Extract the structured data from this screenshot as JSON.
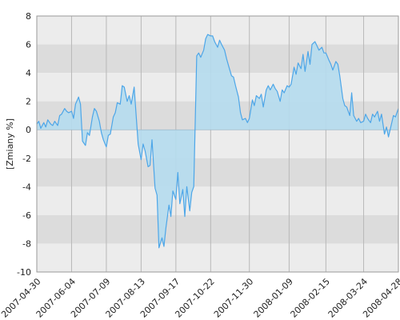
{
  "chart_data": {
    "type": "area",
    "title": "",
    "xlabel": "",
    "ylabel": "[Zmiany %]",
    "ylim": [
      -10,
      8
    ],
    "yticks": [
      8,
      6,
      4,
      2,
      0,
      -2,
      -4,
      -6,
      -8,
      -10
    ],
    "grid": true,
    "xtick_labels": [
      "2007-04-30",
      "2007-06-04",
      "2007-07-09",
      "2007-08-13",
      "2007-09-17",
      "2007-10-22",
      "2007-11-30",
      "2008-01-09",
      "2008-02-15",
      "2008-03-24",
      "2008-04-28"
    ],
    "x_start": "2007-04-30",
    "x_end": "2008-04-28",
    "series": [
      {
        "color": "#4da6e8",
        "fill": "#b5dbee",
        "points": [
          [
            "2007-04-30",
            0.4
          ],
          [
            "2007-05-02",
            0.6
          ],
          [
            "2007-05-04",
            0.1
          ],
          [
            "2007-05-07",
            0.5
          ],
          [
            "2007-05-09",
            0.2
          ],
          [
            "2007-05-11",
            0.7
          ],
          [
            "2007-05-14",
            0.4
          ],
          [
            "2007-05-16",
            0.3
          ],
          [
            "2007-05-18",
            0.6
          ],
          [
            "2007-05-21",
            0.3
          ],
          [
            "2007-05-23",
            1.0
          ],
          [
            "2007-05-25",
            1.1
          ],
          [
            "2007-05-28",
            1.5
          ],
          [
            "2007-05-30",
            1.3
          ],
          [
            "2007-06-01",
            1.2
          ],
          [
            "2007-06-04",
            1.3
          ],
          [
            "2007-06-06",
            0.8
          ],
          [
            "2007-06-08",
            1.8
          ],
          [
            "2007-06-11",
            2.3
          ],
          [
            "2007-06-13",
            1.8
          ],
          [
            "2007-06-15",
            -0.8
          ],
          [
            "2007-06-18",
            -1.1
          ],
          [
            "2007-06-20",
            -0.2
          ],
          [
            "2007-06-22",
            -0.4
          ],
          [
            "2007-06-25",
            0.9
          ],
          [
            "2007-06-27",
            1.5
          ],
          [
            "2007-06-29",
            1.3
          ],
          [
            "2007-07-02",
            0.6
          ],
          [
            "2007-07-04",
            -0.2
          ],
          [
            "2007-07-06",
            -0.7
          ],
          [
            "2007-07-09",
            -1.2
          ],
          [
            "2007-07-11",
            -0.4
          ],
          [
            "2007-07-13",
            -0.3
          ],
          [
            "2007-07-16",
            0.9
          ],
          [
            "2007-07-18",
            1.2
          ],
          [
            "2007-07-20",
            1.9
          ],
          [
            "2007-07-23",
            1.8
          ],
          [
            "2007-07-25",
            3.1
          ],
          [
            "2007-07-27",
            3.0
          ],
          [
            "2007-07-30",
            2.0
          ],
          [
            "2007-08-01",
            2.4
          ],
          [
            "2007-08-03",
            1.8
          ],
          [
            "2007-08-06",
            3.0
          ],
          [
            "2007-08-08",
            1.0
          ],
          [
            "2007-08-10",
            -1.0
          ],
          [
            "2007-08-13",
            -2.1
          ],
          [
            "2007-08-15",
            -1.0
          ],
          [
            "2007-08-17",
            -1.5
          ],
          [
            "2007-08-20",
            -2.6
          ],
          [
            "2007-08-22",
            -2.5
          ],
          [
            "2007-08-24",
            -0.7
          ],
          [
            "2007-08-27",
            -4.1
          ],
          [
            "2007-08-29",
            -4.6
          ],
          [
            "2007-08-31",
            -8.3
          ],
          [
            "2007-09-03",
            -7.6
          ],
          [
            "2007-09-05",
            -8.2
          ],
          [
            "2007-09-07",
            -6.9
          ],
          [
            "2007-09-10",
            -5.3
          ],
          [
            "2007-09-12",
            -6.1
          ],
          [
            "2007-09-14",
            -4.3
          ],
          [
            "2007-09-17",
            -4.9
          ],
          [
            "2007-09-19",
            -3.0
          ],
          [
            "2007-09-21",
            -5.2
          ],
          [
            "2007-09-24",
            -4.2
          ],
          [
            "2007-09-26",
            -6.1
          ],
          [
            "2007-09-28",
            -4.0
          ],
          [
            "2007-10-01",
            -5.7
          ],
          [
            "2007-10-03",
            -4.4
          ],
          [
            "2007-10-05",
            -4.0
          ],
          [
            "2007-10-08",
            5.2
          ],
          [
            "2007-10-10",
            5.4
          ],
          [
            "2007-10-12",
            5.1
          ],
          [
            "2007-10-15",
            5.6
          ],
          [
            "2007-10-17",
            6.4
          ],
          [
            "2007-10-19",
            6.7
          ],
          [
            "2007-10-22",
            6.6
          ],
          [
            "2007-10-24",
            6.6
          ],
          [
            "2007-10-26",
            6.2
          ],
          [
            "2007-10-29",
            5.8
          ],
          [
            "2007-10-31",
            6.3
          ],
          [
            "2007-11-02",
            6.0
          ],
          [
            "2007-11-05",
            5.6
          ],
          [
            "2007-11-07",
            5.0
          ],
          [
            "2007-11-09",
            4.5
          ],
          [
            "2007-11-12",
            3.8
          ],
          [
            "2007-11-14",
            3.7
          ],
          [
            "2007-11-16",
            3.1
          ],
          [
            "2007-11-19",
            2.3
          ],
          [
            "2007-11-21",
            1.2
          ],
          [
            "2007-11-23",
            0.7
          ],
          [
            "2007-11-26",
            0.8
          ],
          [
            "2007-11-28",
            0.5
          ],
          [
            "2007-11-30",
            0.8
          ],
          [
            "2007-12-03",
            2.1
          ],
          [
            "2007-12-05",
            1.7
          ],
          [
            "2007-12-07",
            2.4
          ],
          [
            "2007-12-10",
            2.2
          ],
          [
            "2007-12-12",
            2.5
          ],
          [
            "2007-12-14",
            1.6
          ],
          [
            "2007-12-17",
            2.8
          ],
          [
            "2007-12-19",
            3.1
          ],
          [
            "2007-12-21",
            2.8
          ],
          [
            "2007-12-24",
            3.2
          ],
          [
            "2007-12-26",
            2.9
          ],
          [
            "2007-12-28",
            2.7
          ],
          [
            "2007-12-31",
            2.0
          ],
          [
            "2008-01-02",
            2.8
          ],
          [
            "2008-01-04",
            2.6
          ],
          [
            "2008-01-07",
            3.1
          ],
          [
            "2008-01-09",
            3.0
          ],
          [
            "2008-01-11",
            3.2
          ],
          [
            "2008-01-14",
            4.4
          ],
          [
            "2008-01-16",
            3.9
          ],
          [
            "2008-01-18",
            4.7
          ],
          [
            "2008-01-21",
            4.3
          ],
          [
            "2008-01-23",
            5.3
          ],
          [
            "2008-01-25",
            4.1
          ],
          [
            "2008-01-28",
            5.5
          ],
          [
            "2008-01-30",
            4.6
          ],
          [
            "2008-02-01",
            6.0
          ],
          [
            "2008-02-04",
            6.2
          ],
          [
            "2008-02-06",
            5.9
          ],
          [
            "2008-02-08",
            5.6
          ],
          [
            "2008-02-11",
            5.8
          ],
          [
            "2008-02-13",
            5.4
          ],
          [
            "2008-02-15",
            5.4
          ],
          [
            "2008-02-18",
            4.9
          ],
          [
            "2008-02-20",
            4.6
          ],
          [
            "2008-02-22",
            4.2
          ],
          [
            "2008-02-25",
            4.8
          ],
          [
            "2008-02-27",
            4.6
          ],
          [
            "2008-02-29",
            3.8
          ],
          [
            "2008-03-03",
            2.2
          ],
          [
            "2008-03-05",
            1.7
          ],
          [
            "2008-03-07",
            1.6
          ],
          [
            "2008-03-10",
            1.0
          ],
          [
            "2008-03-12",
            2.6
          ],
          [
            "2008-03-14",
            1.0
          ],
          [
            "2008-03-17",
            0.6
          ],
          [
            "2008-03-19",
            0.8
          ],
          [
            "2008-03-21",
            0.5
          ],
          [
            "2008-03-24",
            0.6
          ],
          [
            "2008-03-26",
            1.1
          ],
          [
            "2008-03-28",
            0.8
          ],
          [
            "2008-03-31",
            0.5
          ],
          [
            "2008-04-02",
            1.1
          ],
          [
            "2008-04-04",
            0.9
          ],
          [
            "2008-04-07",
            1.3
          ],
          [
            "2008-04-09",
            0.6
          ],
          [
            "2008-04-11",
            1.1
          ],
          [
            "2008-04-14",
            -0.3
          ],
          [
            "2008-04-16",
            0.2
          ],
          [
            "2008-04-18",
            -0.5
          ],
          [
            "2008-04-21",
            0.4
          ],
          [
            "2008-04-23",
            1.0
          ],
          [
            "2008-04-25",
            0.9
          ],
          [
            "2008-04-28",
            1.5
          ]
        ]
      }
    ]
  }
}
